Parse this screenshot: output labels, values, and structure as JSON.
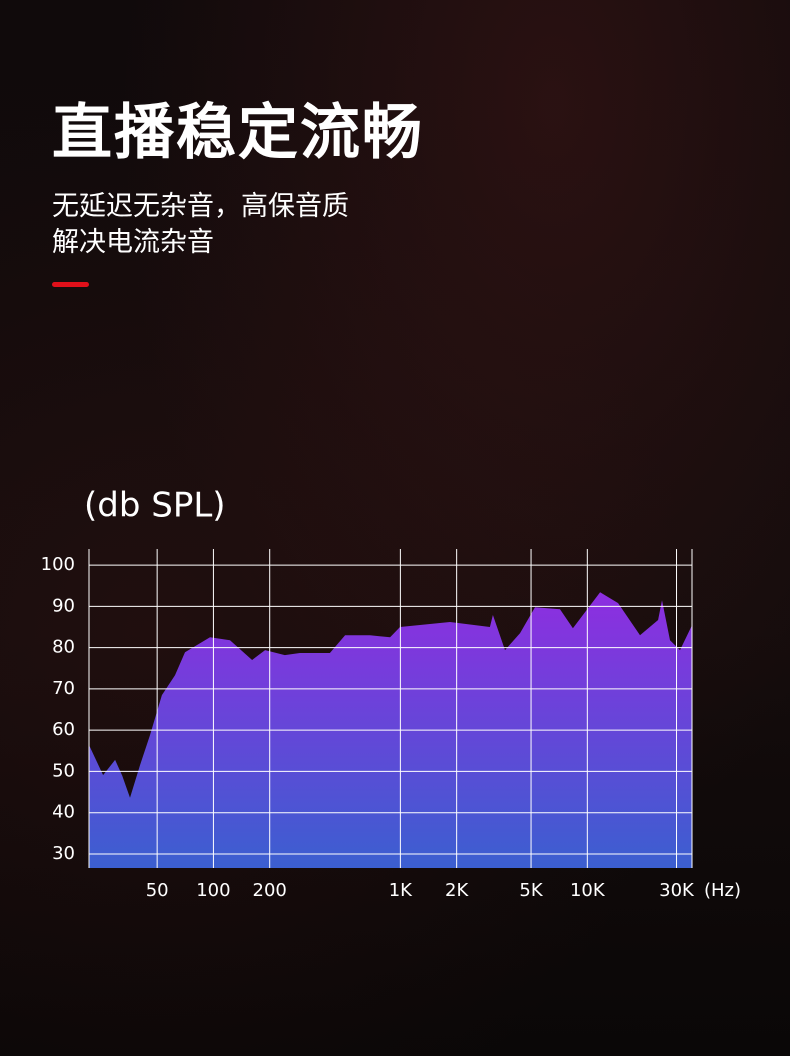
{
  "header": {
    "title": "直播稳定流畅",
    "subtitle_lines": [
      "无延迟无杂音，高保音质",
      "解决电流杂音"
    ]
  },
  "chart_data": {
    "type": "area",
    "y_label": "(db SPL)",
    "x_unit": "(Hz)",
    "log_x": true,
    "grid": true,
    "color_top": "#8e2ee0",
    "color_bottom": "#3b5fd0",
    "xlim": [
      21.6,
      36300
    ],
    "ylim": [
      26.6,
      103.9
    ],
    "xticks": [
      50,
      100,
      200,
      {
        "value": 1000,
        "label": "1K"
      },
      {
        "value": 2000,
        "label": "2K"
      },
      {
        "value": 5000,
        "label": "5K"
      },
      {
        "value": 10000,
        "label": "10K"
      },
      {
        "value": 30000,
        "label": "30K"
      }
    ],
    "yticks": [
      30,
      40,
      50,
      60,
      70,
      80,
      90,
      100
    ],
    "x": [
      21.6,
      25.7,
      29.8,
      32.5,
      35.8,
      40.5,
      45.8,
      53,
      62.3,
      70.5,
      95.9,
      122.7,
      161,
      189,
      241,
      290,
      420,
      506,
      687,
      881,
      995,
      1842,
      3013,
      3126,
      3630,
      4365,
      5250,
      7145,
      8375,
      11700,
      14600,
      19140,
      23900,
      25100,
      27700,
      31300,
      36300
    ],
    "values": [
      56.4,
      49.1,
      52.8,
      49,
      43.6,
      51.5,
      58.8,
      68.5,
      73.3,
      78.9,
      82.5,
      81.8,
      77,
      79.4,
      78.2,
      78.7,
      78.7,
      83,
      83,
      82.5,
      85,
      86.2,
      85,
      87.9,
      79.4,
      83.5,
      89.8,
      89.3,
      84.7,
      93.4,
      90.8,
      83,
      86.7,
      91.5,
      81.8,
      79.4,
      85.4
    ]
  }
}
